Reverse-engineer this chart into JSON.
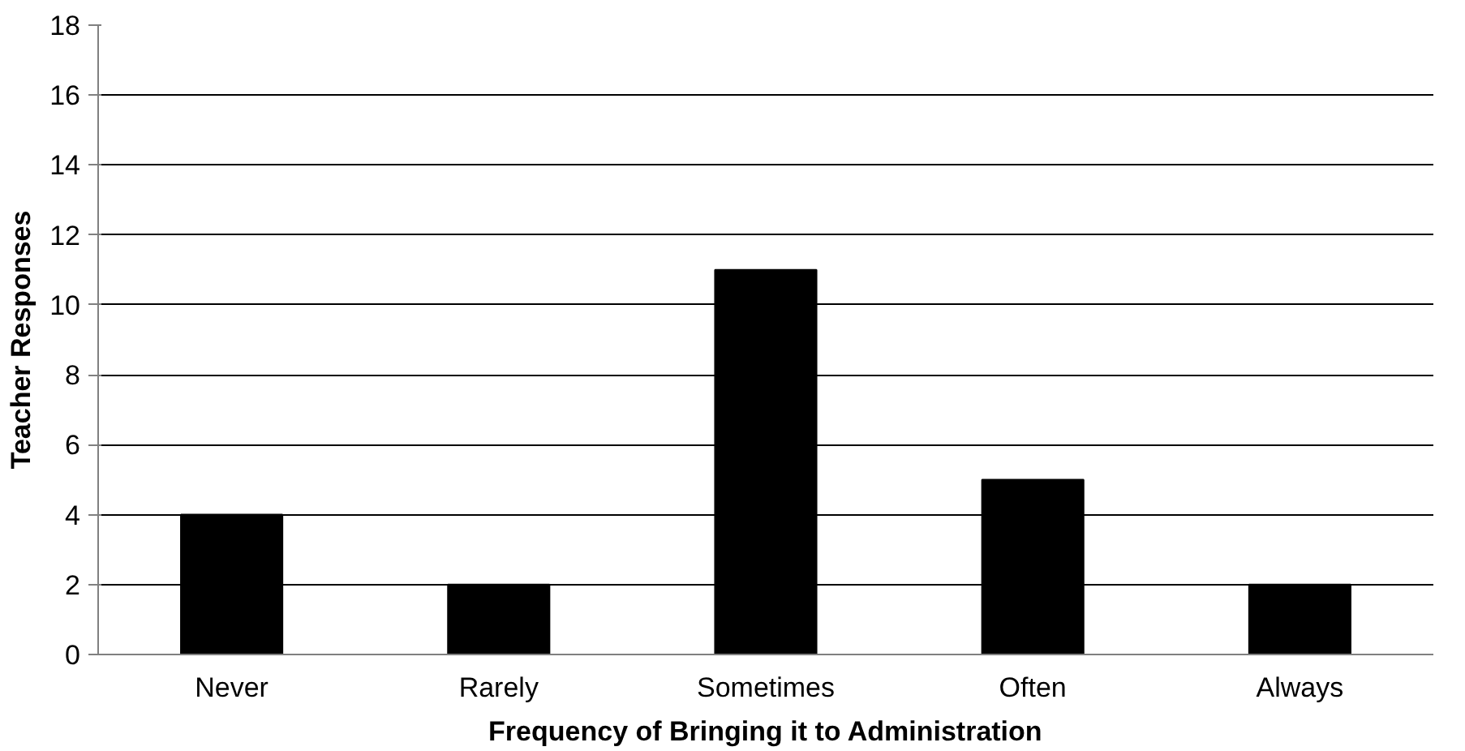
{
  "chart_data": {
    "type": "bar",
    "xlabel": "Frequency of Bringing it to Administration",
    "ylabel": "Teacher Responses",
    "categories": [
      "Never",
      "Rarely",
      "Sometimes",
      "Often",
      "Always"
    ],
    "values": [
      4,
      2,
      11,
      5,
      2
    ],
    "color": "#000000",
    "ylim": [
      0,
      18
    ],
    "yticks": [
      0,
      2,
      4,
      6,
      8,
      10,
      12,
      14,
      16,
      18
    ],
    "grid": "y"
  }
}
